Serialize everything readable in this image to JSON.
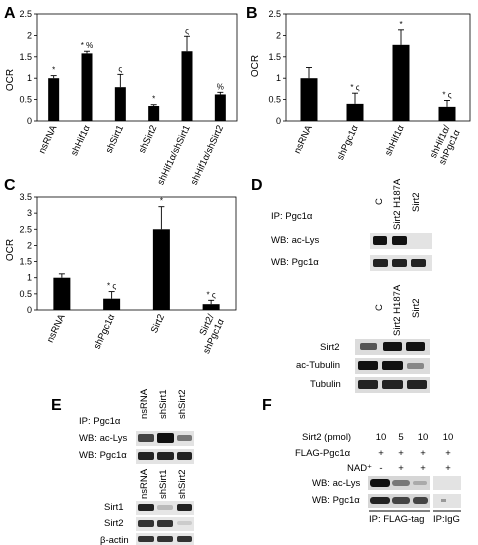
{
  "colors": {
    "bar": "#000000",
    "band": "#1a1a1a",
    "blot_bg": "#e3e3e3"
  },
  "chart_data": [
    {
      "panel": "A",
      "type": "bar",
      "ylabel": "OCR",
      "ylim": [
        0,
        2.5
      ],
      "yticks": [
        "0",
        "0.5",
        "1",
        "1.5",
        "2",
        "2.5"
      ],
      "categories": [
        "nsRNA",
        "shHif1α",
        "shSirt1",
        "shSirt2",
        "shHif1α/shSirt1",
        "shHif1α/shSirt2"
      ],
      "values": [
        1.0,
        1.58,
        0.79,
        0.35,
        1.63,
        0.62
      ],
      "errors": [
        0.06,
        0.05,
        0.3,
        0.03,
        0.35,
        0.05
      ],
      "annotations": [
        "*",
        "* %",
        "ς",
        "*",
        "ς",
        "%"
      ]
    },
    {
      "panel": "B",
      "type": "bar",
      "ylabel": "OCR",
      "ylim": [
        0,
        2.5
      ],
      "yticks": [
        "0",
        "0.5",
        "1",
        "1.5",
        "2",
        "2.5"
      ],
      "categories": [
        "nsRNA",
        "shPgc1α",
        "shHif1α",
        "shHif1α/\nshPgc1α"
      ],
      "values": [
        1.0,
        0.4,
        1.78,
        0.33
      ],
      "errors": [
        0.25,
        0.25,
        0.35,
        0.15
      ],
      "annotations": [
        "",
        "* ς",
        "*",
        "* ς"
      ]
    },
    {
      "panel": "C",
      "type": "bar",
      "ylabel": "OCR",
      "ylim": [
        0,
        3.5
      ],
      "yticks": [
        "0",
        "0.5",
        "1",
        "1.5",
        "2",
        "2.5",
        "3",
        "3.5"
      ],
      "categories": [
        "nsRNA",
        "shPgc1α",
        "Sirt2",
        "Sirt2/\nshPgc1α"
      ],
      "values": [
        1.0,
        0.35,
        2.5,
        0.18
      ],
      "errors": [
        0.12,
        0.22,
        0.7,
        0.12
      ],
      "annotations": [
        "",
        "* ς",
        "*",
        "* ς"
      ]
    }
  ],
  "blots": {
    "D": {
      "panel": "D",
      "ip": "IP: Pgc1α",
      "top_lanes": [
        "C",
        "Sirt2 H187A",
        "Sirt2"
      ],
      "top_rows": [
        "WB: ac-Lys",
        "WB: Pgc1α"
      ],
      "bottom_lanes": [
        "C",
        "Sirt2 H187A",
        "Sirt2"
      ],
      "bottom_rows": [
        "Sirt2",
        "ac-Tubulin",
        "Tubulin"
      ]
    },
    "E": {
      "panel": "E",
      "ip": "IP: Pgc1α",
      "top_lanes": [
        "nsRNA",
        "shSirt1",
        "shSirt2"
      ],
      "top_rows": [
        "WB: ac-Lys",
        "WB: Pgc1α"
      ],
      "bottom_lanes": [
        "nsRNA",
        "shSirt1",
        "shSirt2"
      ],
      "bottom_rows": [
        "Sirt1",
        "Sirt2",
        "β-actin"
      ]
    },
    "F": {
      "panel": "F",
      "row_sirt2": "Sirt2 (pmol)",
      "row_flag": "FLAG-Pgc1α",
      "row_nad": "NAD⁺",
      "sirt2_values": [
        "10",
        "5",
        "10",
        "10"
      ],
      "flag_values": [
        "+",
        "+",
        "+",
        "+"
      ],
      "nad_values": [
        "-",
        "+",
        "+",
        "+"
      ],
      "rows": [
        "WB: ac-Lys",
        "WB: Pgc1α"
      ],
      "ip_flag": "IP: FLAG-tag",
      "ip_igg": "IP:IgG"
    }
  }
}
